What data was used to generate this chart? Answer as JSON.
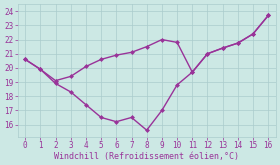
{
  "x": [
    0,
    1,
    2,
    3,
    4,
    5,
    6,
    7,
    8,
    9,
    10,
    11,
    12,
    13,
    14,
    15,
    16
  ],
  "line_upper": [
    20.6,
    19.9,
    19.1,
    19.4,
    20.1,
    20.6,
    20.9,
    21.1,
    21.5,
    22.0,
    21.8,
    19.7,
    21.0,
    21.4,
    21.75,
    22.4,
    23.7
  ],
  "line_lower": [
    20.6,
    19.9,
    18.9,
    18.3,
    17.4,
    16.5,
    16.2,
    16.5,
    15.6,
    17.0,
    18.8,
    19.7,
    21.0,
    21.4,
    21.75,
    22.4,
    23.7
  ],
  "line_color": "#993399",
  "bg_color": "#cce8e4",
  "grid_color": "#aacccc",
  "xlabel": "Windchill (Refroidissement éolien,°C)",
  "xlabel_color": "#993399",
  "yticks": [
    16,
    17,
    18,
    19,
    20,
    21,
    22,
    23,
    24
  ],
  "xlim": [
    -0.5,
    16.5
  ],
  "ylim": [
    15.1,
    24.5
  ],
  "markersize": 2.5,
  "linewidth": 1.0
}
